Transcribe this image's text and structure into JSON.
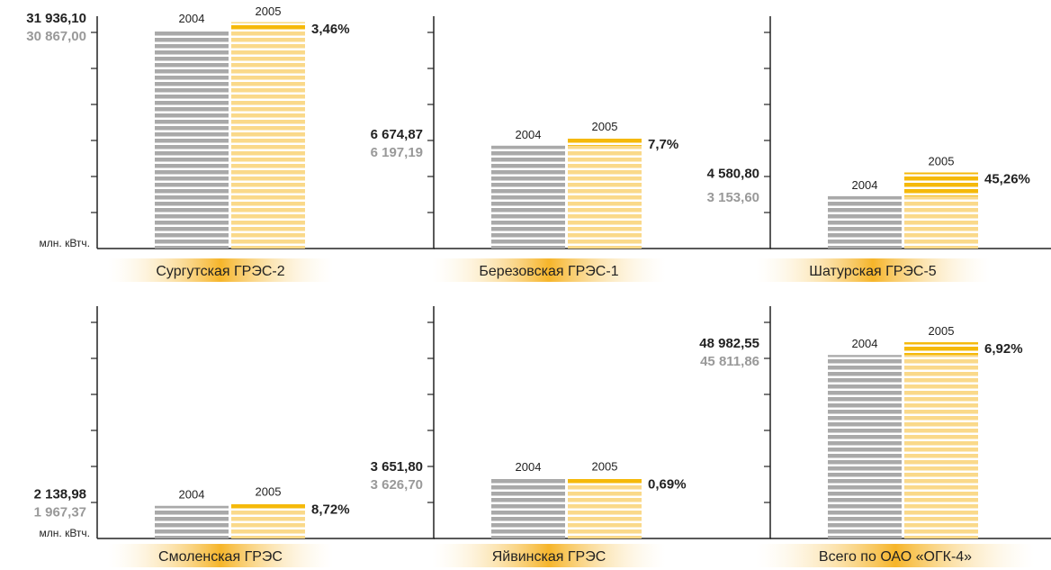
{
  "colors": {
    "bar_2004": "#a9a9a9",
    "bar_2005": "#f5b90a",
    "axis": "#222222",
    "value_prev": "#999999",
    "value_curr": "#222222",
    "label_glow": "#f6b52a"
  },
  "unit_label": "млн. кВтч.",
  "chart_data": [
    {
      "type": "bar",
      "name": "Сургутская ГРЭС-2",
      "categories": [
        "2004",
        "2005"
      ],
      "values": [
        30867.0,
        31936.1
      ],
      "value_labels": [
        "30 867,00",
        "31 936,10"
      ],
      "growth_label": "3,46%",
      "ylim": [
        0,
        32800
      ],
      "unit_shown": true
    },
    {
      "type": "bar",
      "name": "Березовская ГРЭС-1",
      "categories": [
        "2004",
        "2005"
      ],
      "values": [
        6197.19,
        6674.87
      ],
      "value_labels": [
        "6 197,19",
        "6 674,87"
      ],
      "growth_label": "7,7%",
      "ylim": [
        0,
        14000
      ],
      "unit_shown": false
    },
    {
      "type": "bar",
      "name": "Шатурская ГРЭС-5",
      "categories": [
        "2004",
        "2005"
      ],
      "values": [
        3153.6,
        4580.8
      ],
      "value_labels": [
        "3 153,60",
        "4 580,80"
      ],
      "growth_label": "45,26%",
      "ylim": [
        0,
        14000
      ],
      "unit_shown": false
    },
    {
      "type": "bar",
      "name": "Смоленская ГРЭС",
      "categories": [
        "2004",
        "2005"
      ],
      "values": [
        1967.37,
        2138.98
      ],
      "value_labels": [
        "1 967,37",
        "2 138,98"
      ],
      "growth_label": "8,72%",
      "ylim": [
        0,
        14000
      ],
      "unit_shown": true
    },
    {
      "type": "bar",
      "name": "Яйвинская ГРЭС",
      "categories": [
        "2004",
        "2005"
      ],
      "values": [
        3626.7,
        3651.8
      ],
      "value_labels": [
        "3 626,70",
        "3 651,80"
      ],
      "growth_label": "0,69%",
      "ylim": [
        0,
        14000
      ],
      "unit_shown": false
    },
    {
      "type": "bar",
      "name": "Всего по ОАО «ОГК-4»",
      "categories": [
        "2004",
        "2005"
      ],
      "values": [
        45811.86,
        48982.55
      ],
      "value_labels": [
        "45 811,86",
        "48 982,55"
      ],
      "growth_label": "6,92%",
      "ylim": [
        0,
        58000
      ],
      "unit_shown": false
    }
  ]
}
